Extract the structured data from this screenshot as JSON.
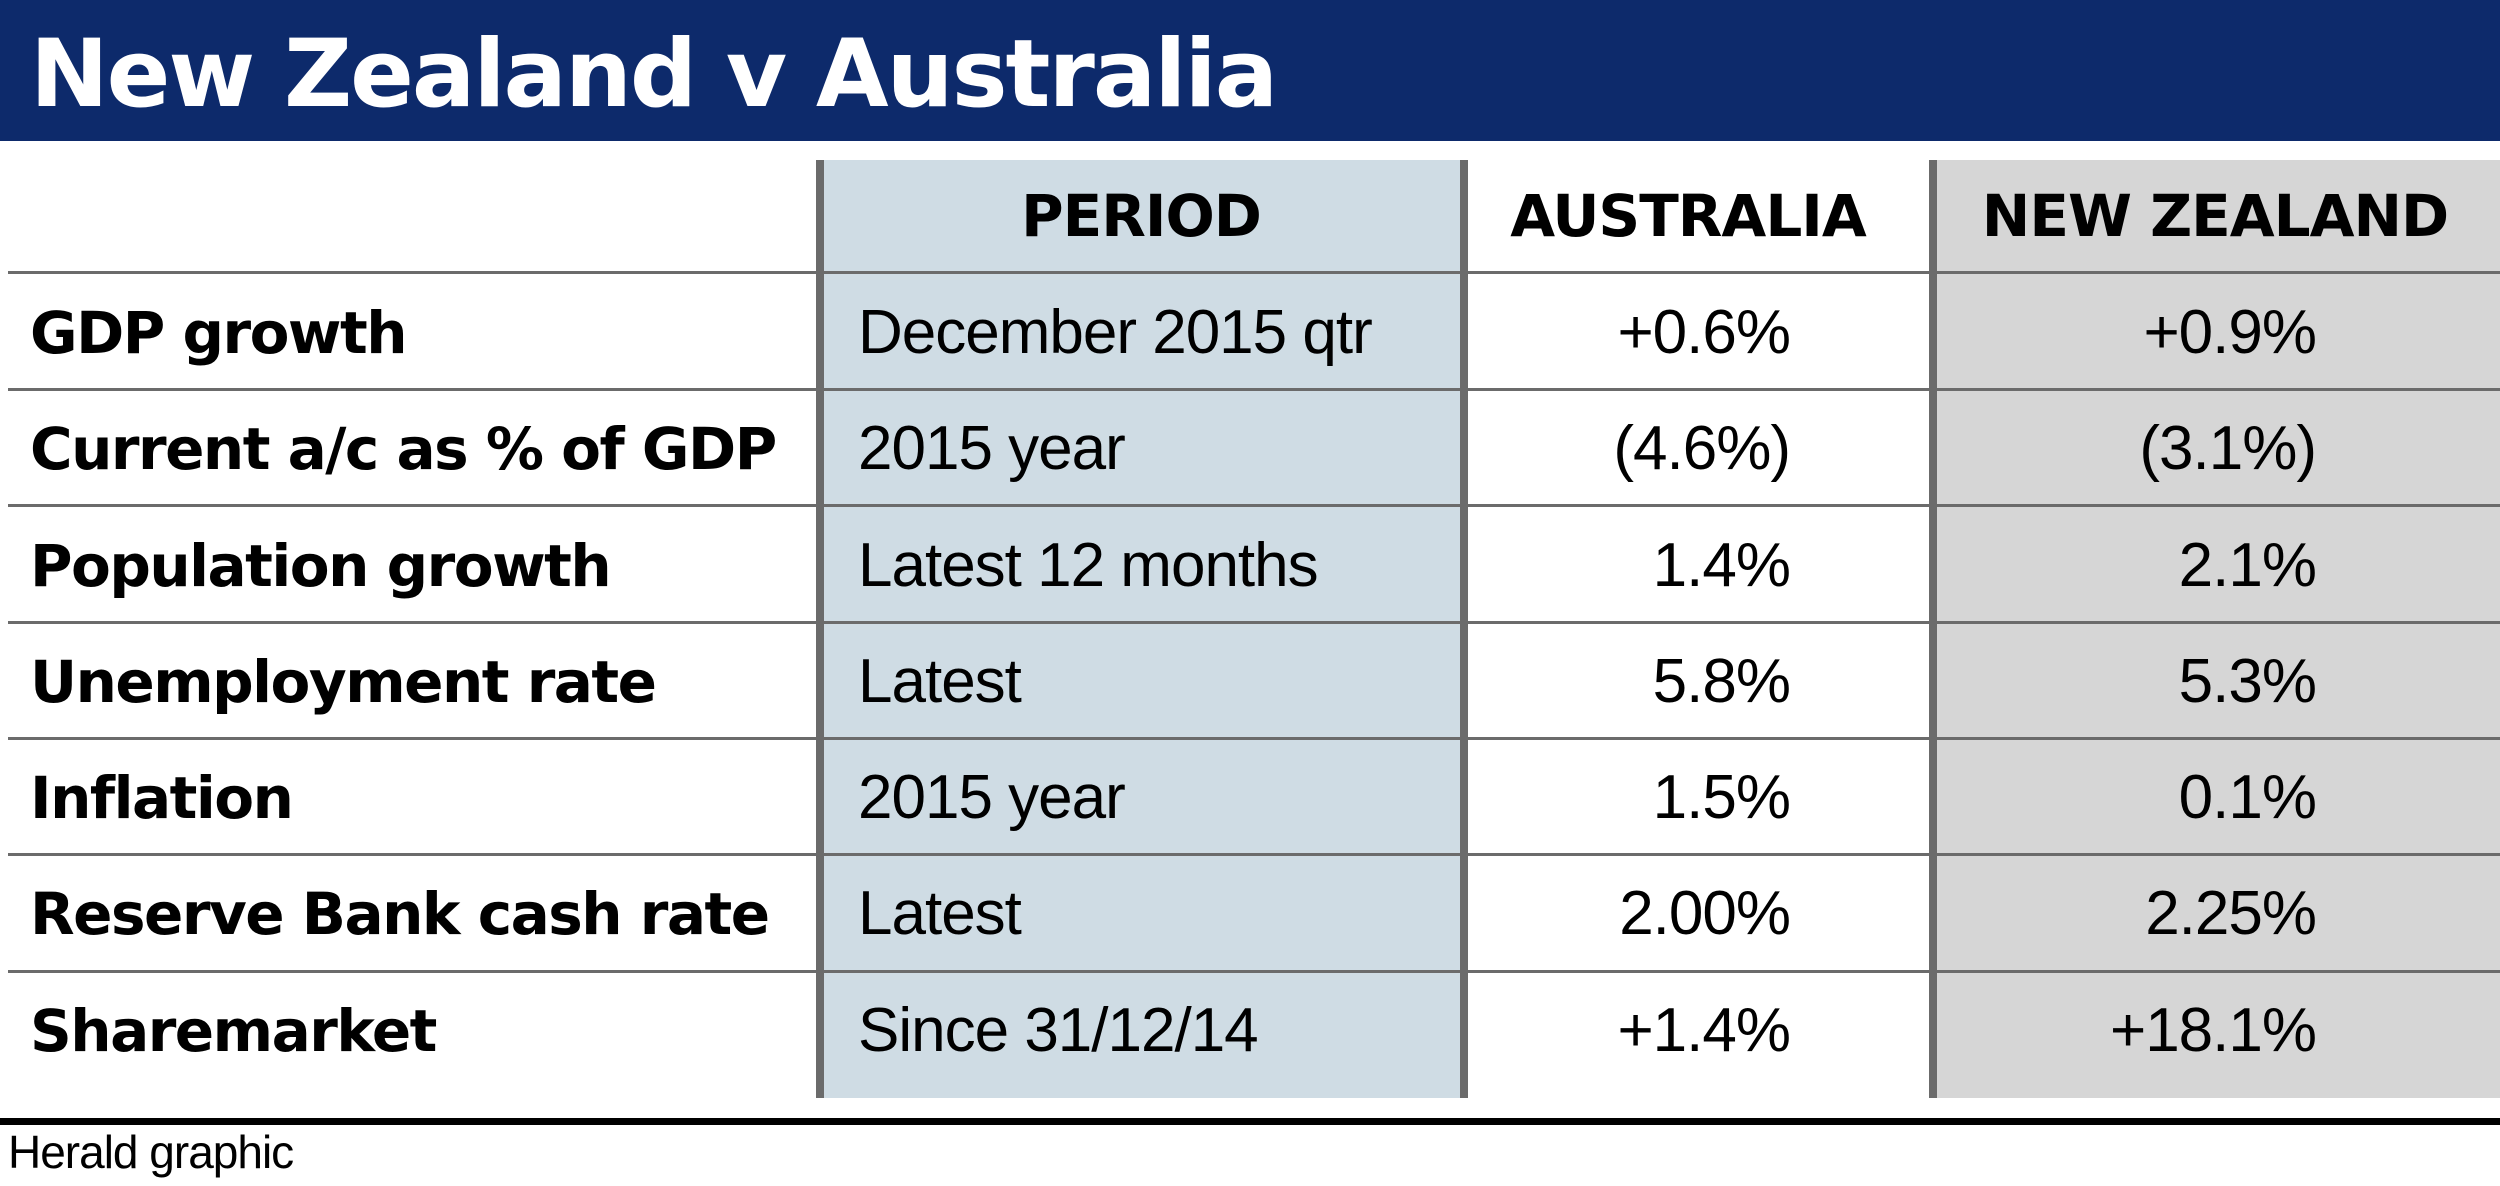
{
  "title": "New Zealand v Australia",
  "source": "Herald graphic",
  "colors": {
    "title_bar": "#0d2a6b",
    "period_column": "#cfdce4",
    "new_zealand_column": "#d6d6d6",
    "grid_lines": "#6b6b6b"
  },
  "chart_data": {
    "type": "table",
    "columns": [
      "",
      "PERIOD",
      "AUSTRALIA",
      "NEW ZEALAND"
    ],
    "rows": [
      {
        "indicator": "GDP growth",
        "period": "December 2015 qtr",
        "australia": "+0.6%",
        "new_zealand": "+0.9%"
      },
      {
        "indicator": "Current a/c as % of GDP",
        "period": "2015 year",
        "australia": "(4.6%)",
        "new_zealand": "(3.1%)"
      },
      {
        "indicator": "Population growth",
        "period": "Latest 12 months",
        "australia": "1.4%",
        "new_zealand": "2.1%"
      },
      {
        "indicator": "Unemployment rate",
        "period": "Latest",
        "australia": "5.8%",
        "new_zealand": "5.3%"
      },
      {
        "indicator": "Inflation",
        "period": "2015 year",
        "australia": "1.5%",
        "new_zealand": "0.1%"
      },
      {
        "indicator": "Reserve Bank cash rate",
        "period": "Latest",
        "australia": "2.00%",
        "new_zealand": "2.25%"
      },
      {
        "indicator": "Sharemarket",
        "period": "Since 31/12/14",
        "australia": "+1.4%",
        "new_zealand": "+18.1%"
      }
    ]
  }
}
